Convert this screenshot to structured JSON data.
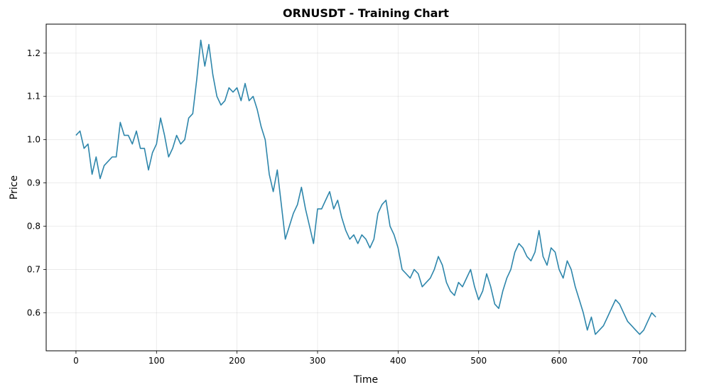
{
  "chart_data": {
    "type": "line",
    "title": "ORNUSDT - Training Chart",
    "xlabel": "Time",
    "ylabel": "Price",
    "xlim": [
      -37,
      757
    ],
    "ylim": [
      0.512,
      1.267
    ],
    "x_ticks": [
      0,
      100,
      200,
      300,
      400,
      500,
      600,
      700
    ],
    "y_ticks": [
      0.6,
      0.7,
      0.8,
      0.9,
      1.0,
      1.1,
      1.2
    ],
    "x_tick_labels": [
      "0",
      "100",
      "200",
      "300",
      "400",
      "500",
      "600",
      "700"
    ],
    "y_tick_labels": [
      "0.6",
      "0.7",
      "0.8",
      "0.9",
      "1.0",
      "1.1",
      "1.2"
    ],
    "grid": true,
    "line_color": "#2E86AB",
    "series": [
      {
        "x": [
          0,
          5,
          10,
          15,
          20,
          25,
          30,
          35,
          40,
          45,
          50,
          55,
          60,
          65,
          70,
          75,
          80,
          85,
          90,
          95,
          100,
          105,
          110,
          115,
          120,
          125,
          130,
          135,
          140,
          145,
          150,
          155,
          160,
          165,
          170,
          175,
          180,
          185,
          190,
          195,
          200,
          205,
          210,
          215,
          220,
          225,
          230,
          235,
          240,
          245,
          250,
          255,
          260,
          265,
          270,
          275,
          280,
          285,
          290,
          295,
          300,
          305,
          310,
          315,
          320,
          325,
          330,
          335,
          340,
          345,
          350,
          355,
          360,
          365,
          370,
          375,
          380,
          385,
          390,
          395,
          400,
          405,
          410,
          415,
          420,
          425,
          430,
          435,
          440,
          445,
          450,
          455,
          460,
          465,
          470,
          475,
          480,
          485,
          490,
          495,
          500,
          505,
          510,
          515,
          520,
          525,
          530,
          535,
          540,
          545,
          550,
          555,
          560,
          565,
          570,
          575,
          580,
          585,
          590,
          595,
          600,
          605,
          610,
          615,
          620,
          625,
          630,
          635,
          640,
          645,
          650,
          655,
          660,
          665,
          670,
          675,
          680,
          685,
          690,
          695,
          700,
          705,
          710,
          715,
          720
        ],
        "values": [
          1.01,
          1.02,
          0.98,
          0.99,
          0.92,
          0.96,
          0.91,
          0.94,
          0.95,
          0.96,
          0.96,
          1.04,
          1.01,
          1.01,
          0.99,
          1.02,
          0.98,
          0.98,
          0.93,
          0.97,
          0.99,
          1.05,
          1.01,
          0.96,
          0.98,
          1.01,
          0.99,
          1.0,
          1.05,
          1.06,
          1.14,
          1.23,
          1.17,
          1.22,
          1.15,
          1.1,
          1.08,
          1.09,
          1.12,
          1.11,
          1.12,
          1.09,
          1.13,
          1.09,
          1.1,
          1.07,
          1.03,
          1.0,
          0.92,
          0.88,
          0.93,
          0.85,
          0.77,
          0.8,
          0.83,
          0.85,
          0.89,
          0.84,
          0.8,
          0.76,
          0.84,
          0.84,
          0.86,
          0.88,
          0.84,
          0.86,
          0.82,
          0.79,
          0.77,
          0.78,
          0.76,
          0.78,
          0.77,
          0.75,
          0.77,
          0.83,
          0.85,
          0.86,
          0.8,
          0.78,
          0.75,
          0.7,
          0.69,
          0.68,
          0.7,
          0.69,
          0.66,
          0.67,
          0.68,
          0.7,
          0.73,
          0.71,
          0.67,
          0.65,
          0.64,
          0.67,
          0.66,
          0.68,
          0.7,
          0.66,
          0.63,
          0.65,
          0.69,
          0.66,
          0.62,
          0.61,
          0.65,
          0.68,
          0.7,
          0.74,
          0.76,
          0.75,
          0.73,
          0.72,
          0.74,
          0.79,
          0.73,
          0.71,
          0.75,
          0.74,
          0.7,
          0.68,
          0.72,
          0.7,
          0.66,
          0.63,
          0.6,
          0.56,
          0.59,
          0.55,
          0.56,
          0.57,
          0.59,
          0.61,
          0.63,
          0.62,
          0.6,
          0.58,
          0.57,
          0.56,
          0.55,
          0.56,
          0.58,
          0.6,
          0.59
        ]
      }
    ]
  }
}
